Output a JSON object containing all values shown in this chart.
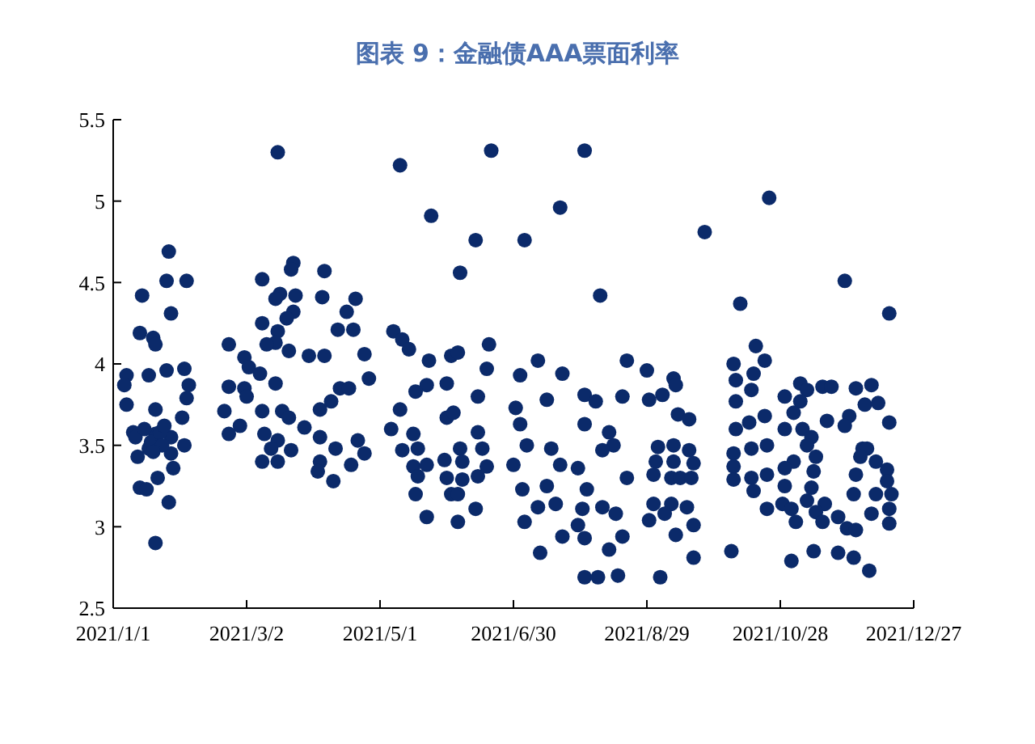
{
  "chart_data": {
    "type": "scatter",
    "title": "图表 9：金融债AAA票面利率",
    "color": "#0b2a6a",
    "marker": "circle",
    "xlim": [
      "2021-01-01",
      "2021-12-27"
    ],
    "xticks": [
      {
        "value": "2021-01-01",
        "label": "2021/1/1"
      },
      {
        "value": "2021-03-02",
        "label": "2021/3/2"
      },
      {
        "value": "2021-05-01",
        "label": "2021/5/1"
      },
      {
        "value": "2021-06-30",
        "label": "2021/6/30"
      },
      {
        "value": "2021-08-29",
        "label": "2021/8/29"
      },
      {
        "value": "2021-10-28",
        "label": "2021/10/28"
      },
      {
        "value": "2021-12-27",
        "label": "2021/12/27"
      }
    ],
    "ylim": [
      2.5,
      5.5
    ],
    "yticks": [
      2.5,
      3,
      3.5,
      4,
      4.5,
      5,
      5.5
    ],
    "x": [
      "2021-01-26",
      "2021-01-25",
      "2021-02-03",
      "2021-01-14",
      "2021-01-27",
      "2021-01-13",
      "2021-01-19",
      "2021-01-20",
      "2021-01-07",
      "2021-01-06",
      "2021-01-07",
      "2021-01-17",
      "2021-01-25",
      "2021-02-02",
      "2021-02-04",
      "2021-02-03",
      "2021-01-20",
      "2021-02-01",
      "2021-01-10",
      "2021-01-20",
      "2021-01-27",
      "2021-01-17",
      "2021-02-02",
      "2021-01-27",
      "2021-01-12",
      "2021-01-28",
      "2021-01-21",
      "2021-01-13",
      "2021-01-16",
      "2021-01-26",
      "2021-01-20",
      "2021-01-11",
      "2021-01-15",
      "2021-01-18",
      "2021-01-22",
      "2021-01-24",
      "2021-01-23",
      "2021-01-19",
      "2021-03-16",
      "2021-03-23",
      "2021-03-22",
      "2021-04-06",
      "2021-03-09",
      "2021-03-17",
      "2021-03-24",
      "2021-04-05",
      "2021-03-15",
      "2021-03-23",
      "2021-03-20",
      "2021-03-09",
      "2021-04-12",
      "2021-03-16",
      "2021-03-15",
      "2021-03-11",
      "2021-02-22",
      "2021-03-21",
      "2021-03-30",
      "2021-04-06",
      "2021-03-01",
      "2021-03-03",
      "2021-03-08",
      "2021-02-22",
      "2021-03-15",
      "2021-03-01",
      "2021-03-02",
      "2021-04-13",
      "2021-02-20",
      "2021-03-09",
      "2021-03-18",
      "2021-04-04",
      "2021-04-09",
      "2021-03-21",
      "2021-02-27",
      "2021-02-22",
      "2021-03-28",
      "2021-03-10",
      "2021-03-16",
      "2021-04-04",
      "2021-04-11",
      "2021-03-13",
      "2021-03-22",
      "2021-03-09",
      "2021-03-16",
      "2021-04-04",
      "2021-04-03",
      "2021-04-10",
      "2021-04-20",
      "2021-04-16",
      "2021-04-19",
      "2021-04-24",
      "2021-04-26",
      "2021-04-17",
      "2021-04-21",
      "2021-04-24",
      "2021-04-18",
      "2021-05-10",
      "2021-05-24",
      "2021-06-13",
      "2021-06-06",
      "2021-06-20",
      "2021-05-07",
      "2021-05-11",
      "2021-05-14",
      "2021-05-23",
      "2021-06-02",
      "2021-06-05",
      "2021-06-19",
      "2021-06-18",
      "2021-05-22",
      "2021-05-31",
      "2021-05-17",
      "2021-05-10",
      "2021-06-14",
      "2021-05-31",
      "2021-06-03",
      "2021-05-06",
      "2021-05-16",
      "2021-06-14",
      "2021-05-11",
      "2021-05-18",
      "2021-06-06",
      "2021-06-16",
      "2021-05-30",
      "2021-06-07",
      "2021-05-16",
      "2021-05-22",
      "2021-06-18",
      "2021-05-18",
      "2021-05-31",
      "2021-06-07",
      "2021-06-14",
      "2021-05-17",
      "2021-06-02",
      "2021-06-05",
      "2021-05-22",
      "2021-06-05",
      "2021-06-13",
      "2021-08-01",
      "2021-07-21",
      "2021-07-05",
      "2021-08-08",
      "2021-07-11",
      "2021-07-22",
      "2021-07-03",
      "2021-08-20",
      "2021-07-15",
      "2021-08-01",
      "2021-08-06",
      "2021-08-18",
      "2021-07-01",
      "2021-07-03",
      "2021-08-01",
      "2021-08-12",
      "2021-07-06",
      "2021-07-17",
      "2021-08-14",
      "2021-06-30",
      "2021-07-21",
      "2021-07-29",
      "2021-08-09",
      "2021-08-20",
      "2021-07-04",
      "2021-07-15",
      "2021-08-02",
      "2021-07-11",
      "2021-07-19",
      "2021-07-31",
      "2021-08-09",
      "2021-08-15",
      "2021-07-05",
      "2021-07-29",
      "2021-07-22",
      "2021-08-01",
      "2021-08-12",
      "2021-07-12",
      "2021-08-01",
      "2021-08-07",
      "2021-08-16",
      "2021-08-18",
      "2021-09-24",
      "2021-10-23",
      "2021-10-10",
      "2021-10-17",
      "2021-10-21",
      "2021-10-07",
      "2021-08-29",
      "2021-09-10",
      "2021-09-11",
      "2021-09-05",
      "2021-08-30",
      "2021-10-08",
      "2021-10-16",
      "2021-10-15",
      "2021-10-08",
      "2021-09-12",
      "2021-09-17",
      "2021-10-21",
      "2021-10-08",
      "2021-10-14",
      "2021-09-03",
      "2021-09-10",
      "2021-09-17",
      "2021-10-22",
      "2021-10-07",
      "2021-10-15",
      "2021-09-02",
      "2021-09-10",
      "2021-09-19",
      "2021-10-07",
      "2021-09-01",
      "2021-09-09",
      "2021-09-13",
      "2021-09-18",
      "2021-10-07",
      "2021-10-15",
      "2021-10-22",
      "2021-10-16",
      "2021-09-01",
      "2021-09-09",
      "2021-09-16",
      "2021-08-30",
      "2021-09-06",
      "2021-10-22",
      "2021-09-19",
      "2021-09-11",
      "2021-10-06",
      "2021-09-19",
      "2021-09-04",
      "2021-11-26",
      "2021-12-16",
      "2021-11-06",
      "2021-11-09",
      "2021-10-30",
      "2021-11-16",
      "2021-11-20",
      "2021-12-01",
      "2021-12-08",
      "2021-11-06",
      "2021-12-05",
      "2021-12-11",
      "2021-11-03",
      "2021-11-28",
      "2021-11-18",
      "2021-12-16",
      "2021-10-30",
      "2021-11-07",
      "2021-11-26",
      "2021-11-11",
      "2021-11-09",
      "2021-12-04",
      "2021-12-06",
      "2021-11-13",
      "2021-12-03",
      "2021-11-03",
      "2021-10-30",
      "2021-12-10",
      "2021-11-12",
      "2021-12-01",
      "2021-12-15",
      "2021-10-30",
      "2021-11-11",
      "2021-12-15",
      "2021-11-30",
      "2021-12-10",
      "2021-12-17",
      "2021-10-29",
      "2021-11-09",
      "2021-11-17",
      "2021-11-02",
      "2021-11-13",
      "2021-11-23",
      "2021-12-08",
      "2021-12-16",
      "2021-11-04",
      "2021-11-16",
      "2021-11-27",
      "2021-12-01",
      "2021-12-16",
      "2021-11-02",
      "2021-11-12",
      "2021-11-23",
      "2021-11-30",
      "2021-12-07"
    ],
    "values": [
      4.69,
      4.51,
      4.51,
      4.42,
      4.31,
      4.19,
      4.16,
      4.12,
      3.93,
      3.87,
      3.75,
      3.93,
      3.96,
      3.97,
      3.87,
      3.79,
      3.72,
      3.67,
      3.58,
      3.57,
      3.55,
      3.48,
      3.5,
      3.45,
      3.43,
      3.36,
      3.3,
      3.24,
      3.23,
      3.15,
      2.9,
      3.55,
      3.6,
      3.52,
      3.58,
      3.62,
      3.5,
      3.46,
      5.3,
      4.62,
      4.58,
      4.57,
      4.52,
      4.43,
      4.42,
      4.41,
      4.4,
      4.32,
      4.28,
      4.25,
      4.21,
      4.2,
      4.13,
      4.12,
      4.12,
      4.08,
      4.05,
      4.05,
      4.04,
      3.98,
      3.94,
      3.86,
      3.88,
      3.85,
      3.8,
      3.85,
      3.71,
      3.71,
      3.71,
      3.72,
      3.77,
      3.67,
      3.62,
      3.57,
      3.61,
      3.57,
      3.53,
      3.55,
      3.48,
      3.48,
      3.47,
      3.4,
      3.4,
      3.4,
      3.34,
      3.28,
      4.4,
      4.32,
      4.21,
      4.06,
      3.91,
      3.85,
      3.53,
      3.45,
      3.38,
      5.22,
      4.91,
      4.76,
      4.56,
      5.31,
      4.2,
      4.15,
      4.09,
      4.02,
      4.05,
      4.07,
      4.12,
      3.97,
      3.87,
      3.88,
      3.83,
      3.72,
      3.8,
      3.67,
      3.7,
      3.6,
      3.57,
      3.58,
      3.47,
      3.48,
      3.48,
      3.48,
      3.41,
      3.4,
      3.37,
      3.38,
      3.37,
      3.31,
      3.3,
      3.29,
      3.31,
      3.2,
      3.2,
      3.2,
      3.06,
      3.03,
      3.11,
      5.31,
      4.96,
      4.76,
      4.42,
      4.02,
      3.94,
      3.93,
      4.02,
      3.78,
      3.81,
      3.77,
      3.8,
      3.73,
      3.63,
      3.63,
      3.58,
      3.5,
      3.48,
      3.5,
      3.38,
      3.38,
      3.36,
      3.47,
      3.3,
      3.23,
      3.25,
      3.23,
      3.12,
      3.14,
      3.11,
      3.12,
      3.08,
      3.03,
      3.01,
      2.94,
      2.93,
      2.86,
      2.84,
      2.69,
      2.69,
      2.7,
      2.94,
      4.81,
      5.02,
      4.37,
      4.11,
      4.02,
      4,
      3.96,
      3.91,
      3.87,
      3.81,
      3.78,
      3.9,
      3.94,
      3.84,
      3.77,
      3.69,
      3.66,
      3.68,
      3.6,
      3.64,
      3.49,
      3.5,
      3.47,
      3.5,
      3.45,
      3.48,
      3.4,
      3.4,
      3.39,
      3.37,
      3.32,
      3.3,
      3.3,
      3.3,
      3.29,
      3.3,
      3.32,
      3.22,
      3.14,
      3.14,
      3.12,
      3.04,
      3.08,
      3.11,
      3.01,
      2.95,
      2.85,
      2.81,
      2.69,
      4.51,
      4.31,
      3.88,
      3.84,
      3.8,
      3.86,
      3.86,
      3.85,
      3.87,
      3.77,
      3.75,
      3.76,
      3.7,
      3.68,
      3.65,
      3.64,
      3.6,
      3.6,
      3.62,
      3.55,
      3.5,
      3.48,
      3.48,
      3.43,
      3.43,
      3.4,
      3.36,
      3.4,
      3.34,
      3.32,
      3.35,
      3.25,
      3.24,
      3.28,
      3.2,
      3.2,
      3.2,
      3.14,
      3.16,
      3.14,
      3.11,
      3.09,
      3.06,
      3.08,
      3.11,
      3.03,
      3.03,
      2.99,
      2.98,
      3.02,
      2.79,
      2.85,
      2.84,
      2.81,
      2.73
    ]
  }
}
